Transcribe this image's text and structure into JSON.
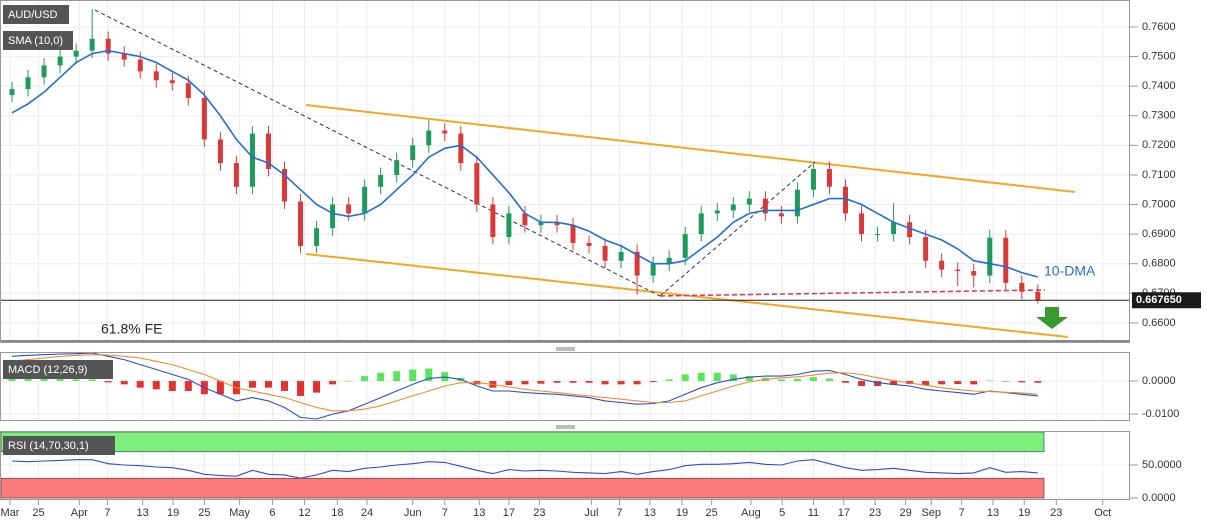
{
  "chart_data": [
    {
      "type": "candlestick",
      "title": "AUD/USD",
      "x": [
        1,
        3,
        5,
        7,
        9,
        11,
        13,
        15,
        17,
        19,
        21,
        23,
        25,
        27,
        29,
        31,
        33,
        35,
        37,
        39,
        41,
        43,
        45,
        47,
        49,
        51,
        53,
        55,
        57,
        59,
        61,
        63,
        65,
        67,
        69,
        71,
        73,
        75,
        77,
        79,
        81,
        83,
        85,
        87,
        89,
        91,
        93,
        95,
        97,
        99,
        101,
        103,
        105,
        107,
        109,
        111,
        113,
        115,
        117,
        119,
        121,
        123,
        125,
        127,
        129
      ],
      "candles": [
        [
          0.737,
          0.7415,
          0.7345,
          0.739
        ],
        [
          0.739,
          0.7455,
          0.7365,
          0.743
        ],
        [
          0.743,
          0.7495,
          0.7405,
          0.747
        ],
        [
          0.747,
          0.7525,
          0.7445,
          0.75
        ],
        [
          0.75,
          0.7545,
          0.7475,
          0.752
        ],
        [
          0.752,
          0.7661,
          0.7495,
          0.756
        ],
        [
          0.756,
          0.7585,
          0.7485,
          0.751
        ],
        [
          0.751,
          0.7535,
          0.7465,
          0.749
        ],
        [
          0.749,
          0.7515,
          0.7425,
          0.745
        ],
        [
          0.745,
          0.7475,
          0.7395,
          0.742
        ],
        [
          0.742,
          0.7445,
          0.7385,
          0.741
        ],
        [
          0.741,
          0.7435,
          0.7335,
          0.736
        ],
        [
          0.736,
          0.7385,
          0.7195,
          0.722
        ],
        [
          0.722,
          0.7245,
          0.7115,
          0.714
        ],
        [
          0.714,
          0.7165,
          0.7035,
          0.706
        ],
        [
          0.706,
          0.7265,
          0.7035,
          0.724
        ],
        [
          0.724,
          0.7265,
          0.7095,
          0.712
        ],
        [
          0.712,
          0.7145,
          0.6985,
          0.701
        ],
        [
          0.701,
          0.7035,
          0.6835,
          0.686
        ],
        [
          0.686,
          0.6945,
          0.6835,
          0.692
        ],
        [
          0.692,
          0.7025,
          0.6895,
          0.7
        ],
        [
          0.7,
          0.7025,
          0.6945,
          0.697
        ],
        [
          0.697,
          0.7085,
          0.6945,
          0.706
        ],
        [
          0.706,
          0.7125,
          0.7035,
          0.71
        ],
        [
          0.71,
          0.7175,
          0.7075,
          0.715
        ],
        [
          0.715,
          0.7225,
          0.7125,
          0.72
        ],
        [
          0.72,
          0.7285,
          0.7175,
          0.725
        ],
        [
          0.725,
          0.7275,
          0.7215,
          0.724
        ],
        [
          0.724,
          0.7265,
          0.7115,
          0.714
        ],
        [
          0.714,
          0.7165,
          0.6975,
          0.7
        ],
        [
          0.7,
          0.7025,
          0.6865,
          0.689
        ],
        [
          0.689,
          0.6995,
          0.6865,
          0.697
        ],
        [
          0.697,
          0.6995,
          0.6905,
          0.693
        ],
        [
          0.693,
          0.6965,
          0.6905,
          0.694
        ],
        [
          0.694,
          0.6965,
          0.6905,
          0.693
        ],
        [
          0.693,
          0.6955,
          0.6845,
          0.687
        ],
        [
          0.687,
          0.6895,
          0.6835,
          0.686
        ],
        [
          0.686,
          0.6885,
          0.6785,
          0.681
        ],
        [
          0.681,
          0.6865,
          0.6785,
          0.684
        ],
        [
          0.684,
          0.6865,
          0.6695,
          0.676
        ],
        [
          0.676,
          0.6825,
          0.6735,
          0.68
        ],
        [
          0.68,
          0.6845,
          0.6775,
          0.682
        ],
        [
          0.682,
          0.6925,
          0.6795,
          0.69
        ],
        [
          0.69,
          0.6995,
          0.6875,
          0.697
        ],
        [
          0.697,
          0.7005,
          0.6945,
          0.698
        ],
        [
          0.698,
          0.7025,
          0.6955,
          0.7
        ],
        [
          0.7,
          0.7045,
          0.6975,
          0.702
        ],
        [
          0.702,
          0.7045,
          0.6945,
          0.697
        ],
        [
          0.697,
          0.6995,
          0.6935,
          0.696
        ],
        [
          0.696,
          0.7075,
          0.6935,
          0.705
        ],
        [
          0.705,
          0.7145,
          0.7025,
          0.712
        ],
        [
          0.712,
          0.7145,
          0.7035,
          0.706
        ],
        [
          0.706,
          0.7085,
          0.6945,
          0.697
        ],
        [
          0.697,
          0.6995,
          0.6875,
          0.69
        ],
        [
          0.69,
          0.6925,
          0.6875,
          0.69
        ],
        [
          0.69,
          0.7005,
          0.6875,
          0.694
        ],
        [
          0.694,
          0.6965,
          0.6865,
          0.689
        ],
        [
          0.689,
          0.6915,
          0.6785,
          0.681
        ],
        [
          0.681,
          0.6835,
          0.6755,
          0.678
        ],
        [
          0.678,
          0.6805,
          0.6725,
          0.6775
        ],
        [
          0.6775,
          0.68,
          0.672,
          0.676
        ],
        [
          0.676,
          0.6915,
          0.6735,
          0.6888
        ],
        [
          0.6888,
          0.6913,
          0.671,
          0.6735
        ],
        [
          0.6735,
          0.676,
          0.668,
          0.6705
        ],
        [
          0.6705,
          0.673,
          0.6665,
          0.66765
        ]
      ],
      "up_color": "#1f9a5a",
      "down_color": "#d83a3a",
      "series": [
        {
          "name": "SMA (10,0)",
          "color": "#1f6fd6",
          "values": [
            0.731,
            0.734,
            0.738,
            0.743,
            0.748,
            0.751,
            0.752,
            0.751,
            0.75,
            0.748,
            0.745,
            0.742,
            0.737,
            0.73,
            0.722,
            0.716,
            0.714,
            0.71,
            0.705,
            0.7,
            0.697,
            0.696,
            0.697,
            0.7,
            0.705,
            0.71,
            0.716,
            0.719,
            0.72,
            0.716,
            0.71,
            0.704,
            0.697,
            0.694,
            0.694,
            0.693,
            0.691,
            0.688,
            0.686,
            0.683,
            0.68,
            0.68,
            0.681,
            0.685,
            0.689,
            0.694,
            0.697,
            0.698,
            0.698,
            0.698,
            0.7,
            0.702,
            0.702,
            0.7,
            0.697,
            0.694,
            0.692,
            0.69,
            0.688,
            0.685,
            0.681,
            0.68,
            0.679,
            0.677,
            0.6755
          ]
        }
      ],
      "annotations": [
        "10-DMA",
        "61.8% FE"
      ],
      "last_price": {
        "value": 0.66765,
        "label": "0.667650"
      },
      "xlim": [
        -0.5,
        140.5
      ],
      "xticks": [
        {
          "value": 0.75,
          "label": "Mar"
        },
        {
          "value": 4.3,
          "label": "25"
        },
        {
          "value": 9.4,
          "label": "Apr"
        },
        {
          "value": 12.9,
          "label": "7"
        },
        {
          "value": 17.3,
          "label": "13"
        },
        {
          "value": 21.1,
          "label": "19"
        },
        {
          "value": 25,
          "label": "25"
        },
        {
          "value": 29.4,
          "label": "May"
        },
        {
          "value": 33.5,
          "label": "6"
        },
        {
          "value": 37.5,
          "label": "12"
        },
        {
          "value": 41.6,
          "label": "18"
        },
        {
          "value": 45.3,
          "label": "24"
        },
        {
          "value": 51,
          "label": "Jun"
        },
        {
          "value": 55,
          "label": "7"
        },
        {
          "value": 59.3,
          "label": "13"
        },
        {
          "value": 63,
          "label": "17"
        },
        {
          "value": 66.8,
          "label": "23"
        },
        {
          "value": 73.3,
          "label": "Jul"
        },
        {
          "value": 76.8,
          "label": "7"
        },
        {
          "value": 80.6,
          "label": "13"
        },
        {
          "value": 84.6,
          "label": "19"
        },
        {
          "value": 88.3,
          "label": "25"
        },
        {
          "value": 93.2,
          "label": "Aug"
        },
        {
          "value": 97.1,
          "label": "5"
        },
        {
          "value": 101,
          "label": "11"
        },
        {
          "value": 104.8,
          "label": "17"
        },
        {
          "value": 108.7,
          "label": "23"
        },
        {
          "value": 112.5,
          "label": "29"
        },
        {
          "value": 115.7,
          "label": "Sep"
        },
        {
          "value": 119.5,
          "label": "7"
        },
        {
          "value": 123.4,
          "label": "13"
        },
        {
          "value": 127.3,
          "label": "19"
        },
        {
          "value": 131.3,
          "label": "23"
        },
        {
          "value": 137.1,
          "label": "Oct"
        }
      ],
      "ylim": [
        0.6532,
        0.76912
      ],
      "yticks": [
        {
          "value": 0.66,
          "label": "0.6600"
        },
        {
          "value": 0.67,
          "label": "0.6700"
        },
        {
          "value": 0.68,
          "label": "0.6800"
        },
        {
          "value": 0.69,
          "label": "0.6900"
        },
        {
          "value": 0.7,
          "label": "0.7000"
        },
        {
          "value": 0.71,
          "label": "0.7100"
        },
        {
          "value": 0.72,
          "label": "0.7200"
        },
        {
          "value": 0.73,
          "label": "0.7300"
        },
        {
          "value": 0.74,
          "label": "0.7400"
        },
        {
          "value": 0.75,
          "label": "0.7500"
        },
        {
          "value": 0.76,
          "label": "0.7600"
        }
      ],
      "grid": true
    },
    {
      "type": "macd",
      "title": "MACD (12,26,9)",
      "series": [
        {
          "color": "#2a4fcf",
          "values": [
            0.0075,
            0.0078,
            0.008,
            0.0082,
            0.0083,
            0.0085,
            0.0075,
            0.0065,
            0.005,
            0.0035,
            0.002,
            0.0005,
            -0.002,
            -0.004,
            -0.006,
            -0.005,
            -0.006,
            -0.008,
            -0.011,
            -0.0115,
            -0.01,
            -0.009,
            -0.007,
            -0.005,
            -0.003,
            -0.001,
            0.0008,
            0.0012,
            0.0005,
            -0.0015,
            -0.003,
            -0.003,
            -0.0035,
            -0.0038,
            -0.004,
            -0.0045,
            -0.005,
            -0.006,
            -0.0065,
            -0.007,
            -0.0068,
            -0.006,
            -0.004,
            -0.002,
            -0.0005,
            0.0005,
            0.0012,
            0.0015,
            0.0015,
            0.002,
            0.003,
            0.0032,
            0.002,
            0.0005,
            -0.0005,
            -0.001,
            -0.0015,
            -0.0025,
            -0.003,
            -0.0035,
            -0.004,
            -0.003,
            -0.0035,
            -0.004,
            -0.0045
          ]
        },
        {
          "color": "#f08c2c",
          "values": [
            0.006,
            0.0065,
            0.007,
            0.0075,
            0.0078,
            0.008,
            0.0079,
            0.0075,
            0.007,
            0.006,
            0.005,
            0.0035,
            0.002,
            0,
            -0.002,
            -0.003,
            -0.004,
            -0.005,
            -0.0065,
            -0.008,
            -0.009,
            -0.009,
            -0.0085,
            -0.0075,
            -0.006,
            -0.0045,
            -0.003,
            -0.0015,
            -0.0005,
            -0.0005,
            -0.001,
            -0.0018,
            -0.0025,
            -0.003,
            -0.0035,
            -0.004,
            -0.0045,
            -0.005,
            -0.0055,
            -0.006,
            -0.0065,
            -0.0065,
            -0.006,
            -0.0045,
            -0.003,
            -0.0015,
            -0.0003,
            0.0005,
            0.001,
            0.0013,
            0.0018,
            0.0024,
            0.0025,
            0.002,
            0.001,
            0.0002,
            -0.0006,
            -0.0013,
            -0.002,
            -0.0026,
            -0.003,
            -0.0032,
            -0.0034,
            -0.0036,
            -0.004
          ]
        }
      ],
      "histogram": [
        0.0015,
        0.0013,
        0.001,
        0.0007,
        0.0005,
        0.0005,
        -0.0004,
        -0.001,
        -0.002,
        -0.0025,
        -0.003,
        -0.003,
        -0.004,
        -0.004,
        -0.004,
        -0.002,
        -0.002,
        -0.003,
        -0.0045,
        -0.0035,
        -0.001,
        0,
        0.0015,
        0.0025,
        0.003,
        0.0035,
        0.0038,
        0.0027,
        0.001,
        -0.001,
        -0.002,
        -0.0012,
        -0.001,
        -0.0008,
        -0.0005,
        -0.0005,
        -0.0005,
        -0.001,
        -0.001,
        -0.001,
        -0.0003,
        0.0005,
        0.002,
        0.0025,
        0.0025,
        0.002,
        0.0015,
        0.001,
        0.0005,
        0.0007,
        0.0012,
        0.0008,
        -0.0005,
        -0.0015,
        -0.0015,
        -0.0012,
        -0.0009,
        -0.0012,
        -0.001,
        -0.0009,
        -0.001,
        0.0002,
        -0.0001,
        -0.0004,
        -0.0005
      ],
      "up_color": "#5be35b",
      "down_color": "#e53030",
      "ylim": [
        -0.0121,
        0.0085
      ],
      "yticks": [
        {
          "value": 0,
          "label": "0.0000"
        },
        {
          "value": -0.01,
          "label": "-0.0100"
        }
      ],
      "grid": true
    },
    {
      "type": "line",
      "title": "RSI (14,70,30,1)",
      "series": [
        {
          "color": "#2a4fcf",
          "values": [
            56,
            55,
            56,
            57,
            58,
            58,
            52,
            50,
            49,
            47,
            46,
            42,
            36,
            34,
            33,
            42,
            36,
            35,
            30,
            35,
            42,
            40,
            45,
            47,
            50,
            52,
            55,
            54,
            48,
            42,
            37,
            43,
            41,
            42,
            41,
            39,
            38,
            37,
            40,
            36,
            40,
            43,
            49,
            51,
            51,
            52,
            54,
            51,
            50,
            56,
            58,
            52,
            46,
            42,
            43,
            45,
            42,
            39,
            38,
            37,
            38,
            46,
            39,
            40,
            38
          ]
        }
      ],
      "bands": [
        {
          "from": 70,
          "to": 100,
          "color": "#7cee7c"
        },
        {
          "from": 0,
          "to": 30,
          "color": "#fb7b7b"
        }
      ],
      "ylim": [
        -3,
        100
      ],
      "yticks": [
        {
          "value": 50,
          "label": "50.0000"
        },
        {
          "value": 0,
          "label": "0.0000"
        }
      ],
      "grid": true
    }
  ]
}
